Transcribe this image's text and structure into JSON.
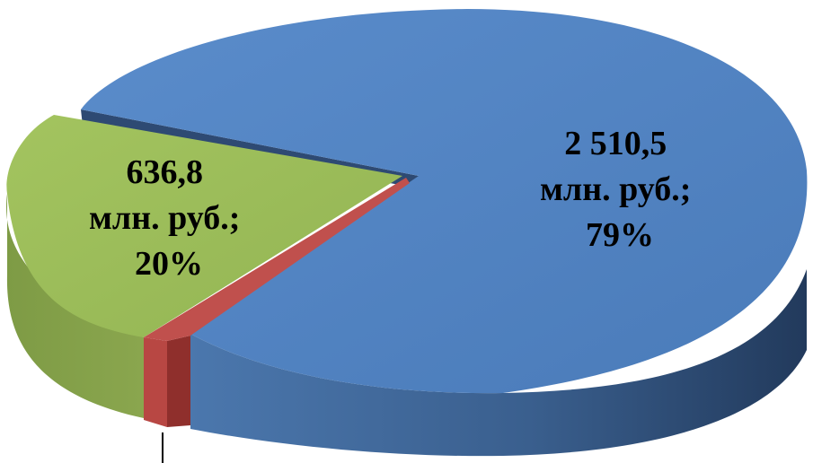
{
  "chart_data": {
    "type": "pie",
    "slices": [
      {
        "value": 2510.5,
        "percent": 79,
        "color": "#4f81bd",
        "label_lines": [
          "2 510,5",
          "млн. руб.;",
          "79%"
        ]
      },
      {
        "value": 636.8,
        "percent": 20,
        "color": "#9bbb59",
        "label_lines": [
          "636,8",
          "млн. руб.;",
          "20%"
        ]
      },
      {
        "value": null,
        "percent": 1,
        "color": "#c0504d",
        "label_lines": []
      }
    ],
    "legend": "none",
    "style": "3d-exploded"
  }
}
